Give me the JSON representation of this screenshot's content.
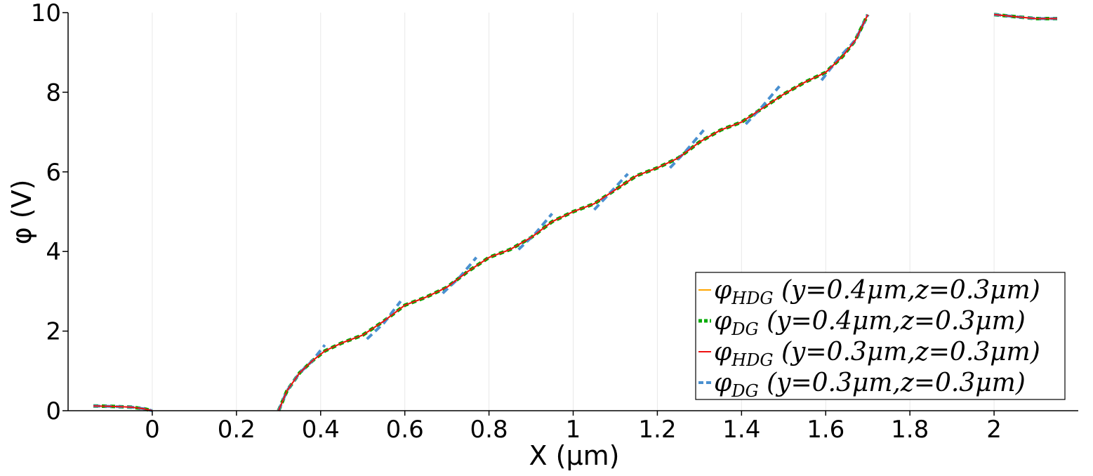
{
  "chart_data": {
    "type": "line",
    "xlabel": "X (μm)",
    "ylabel": "φ (V)",
    "xlim": [
      -0.2,
      2.2
    ],
    "ylim": [
      0,
      10
    ],
    "x_ticks": [
      0,
      0.2,
      0.4,
      0.6,
      0.8,
      1,
      1.2,
      1.4,
      1.6,
      1.8,
      2
    ],
    "y_ticks": [
      0,
      2,
      4,
      6,
      8,
      10
    ],
    "x_grid": true,
    "legend_position": "lower-right",
    "series": [
      {
        "name": "φHDG (y=0.4μm,z=0.3μm)",
        "legend_label": "φ_HDG (y=0.4μm,z=0.3μm)",
        "color": "#ffa500",
        "style": "solid",
        "segments": [
          [
            [
              -0.14,
              0.12
            ],
            [
              -0.1,
              0.11
            ],
            [
              -0.05,
              0.09
            ],
            [
              -0.02,
              0.05
            ],
            [
              0,
              0.0
            ]
          ],
          [
            [
              0.3,
              0.0
            ],
            [
              0.32,
              0.5
            ],
            [
              0.35,
              0.95
            ],
            [
              0.38,
              1.25
            ],
            [
              0.41,
              1.5
            ],
            [
              0.45,
              1.7
            ],
            [
              0.5,
              1.9
            ],
            [
              0.55,
              2.25
            ],
            [
              0.6,
              2.65
            ],
            [
              0.65,
              2.85
            ],
            [
              0.7,
              3.1
            ],
            [
              0.75,
              3.5
            ],
            [
              0.8,
              3.85
            ],
            [
              0.85,
              4.05
            ],
            [
              0.9,
              4.35
            ],
            [
              0.95,
              4.75
            ],
            [
              1.0,
              5.0
            ],
            [
              1.05,
              5.2
            ],
            [
              1.1,
              5.55
            ],
            [
              1.15,
              5.9
            ],
            [
              1.2,
              6.1
            ],
            [
              1.25,
              6.35
            ],
            [
              1.3,
              6.75
            ],
            [
              1.35,
              7.05
            ],
            [
              1.4,
              7.25
            ],
            [
              1.45,
              7.6
            ],
            [
              1.5,
              7.95
            ],
            [
              1.55,
              8.25
            ],
            [
              1.6,
              8.5
            ],
            [
              1.64,
              8.9
            ],
            [
              1.67,
              9.3
            ],
            [
              1.7,
              9.95
            ]
          ],
          [
            [
              2.0,
              9.95
            ],
            [
              2.05,
              9.9
            ],
            [
              2.1,
              9.85
            ],
            [
              2.15,
              9.85
            ]
          ]
        ]
      },
      {
        "name": "φDG (y=0.4μm,z=0.3μm)",
        "legend_label": "φ_DG (y=0.4μm,z=0.3μm)",
        "color": "#00aa00",
        "style": "dotted",
        "segments": [
          [
            [
              -0.14,
              0.12
            ],
            [
              -0.1,
              0.11
            ],
            [
              -0.05,
              0.09
            ],
            [
              -0.02,
              0.05
            ],
            [
              0,
              0.0
            ]
          ],
          [
            [
              0.3,
              0.0
            ],
            [
              0.32,
              0.5
            ],
            [
              0.35,
              0.95
            ],
            [
              0.38,
              1.25
            ],
            [
              0.41,
              1.5
            ],
            [
              0.45,
              1.7
            ],
            [
              0.5,
              1.9
            ],
            [
              0.55,
              2.25
            ],
            [
              0.6,
              2.65
            ],
            [
              0.65,
              2.85
            ],
            [
              0.7,
              3.1
            ],
            [
              0.75,
              3.5
            ],
            [
              0.8,
              3.85
            ],
            [
              0.85,
              4.05
            ],
            [
              0.9,
              4.35
            ],
            [
              0.95,
              4.75
            ],
            [
              1.0,
              5.0
            ],
            [
              1.05,
              5.2
            ],
            [
              1.1,
              5.55
            ],
            [
              1.15,
              5.9
            ],
            [
              1.2,
              6.1
            ],
            [
              1.25,
              6.35
            ],
            [
              1.3,
              6.75
            ],
            [
              1.35,
              7.05
            ],
            [
              1.4,
              7.25
            ],
            [
              1.45,
              7.6
            ],
            [
              1.5,
              7.95
            ],
            [
              1.55,
              8.25
            ],
            [
              1.6,
              8.5
            ],
            [
              1.64,
              8.9
            ],
            [
              1.67,
              9.3
            ],
            [
              1.7,
              9.95
            ]
          ],
          [
            [
              2.0,
              9.95
            ],
            [
              2.05,
              9.9
            ],
            [
              2.1,
              9.85
            ],
            [
              2.15,
              9.85
            ]
          ]
        ]
      },
      {
        "name": "φHDG (y=0.3μm,z=0.3μm)",
        "legend_label": "φ_HDG (y=0.3μm,z=0.3μm)",
        "color": "#ee1111",
        "style": "solid",
        "segments": [
          [
            [
              -0.14,
              0.12
            ],
            [
              -0.1,
              0.11
            ],
            [
              -0.05,
              0.09
            ],
            [
              -0.02,
              0.05
            ],
            [
              0,
              0.0
            ]
          ],
          [
            [
              0.3,
              0.0
            ],
            [
              0.32,
              0.5
            ],
            [
              0.35,
              0.95
            ],
            [
              0.38,
              1.25
            ],
            [
              0.41,
              1.5
            ],
            [
              0.45,
              1.7
            ],
            [
              0.5,
              1.9
            ],
            [
              0.55,
              2.25
            ],
            [
              0.6,
              2.65
            ],
            [
              0.65,
              2.85
            ],
            [
              0.7,
              3.1
            ],
            [
              0.75,
              3.5
            ],
            [
              0.8,
              3.85
            ],
            [
              0.85,
              4.05
            ],
            [
              0.9,
              4.35
            ],
            [
              0.95,
              4.75
            ],
            [
              1.0,
              5.0
            ],
            [
              1.05,
              5.2
            ],
            [
              1.1,
              5.55
            ],
            [
              1.15,
              5.9
            ],
            [
              1.2,
              6.1
            ],
            [
              1.25,
              6.35
            ],
            [
              1.3,
              6.75
            ],
            [
              1.35,
              7.05
            ],
            [
              1.4,
              7.25
            ],
            [
              1.45,
              7.6
            ],
            [
              1.5,
              7.95
            ],
            [
              1.55,
              8.25
            ],
            [
              1.6,
              8.5
            ],
            [
              1.64,
              8.9
            ],
            [
              1.67,
              9.3
            ],
            [
              1.7,
              9.95
            ]
          ],
          [
            [
              2.0,
              9.95
            ],
            [
              2.05,
              9.9
            ],
            [
              2.1,
              9.85
            ],
            [
              2.15,
              9.85
            ]
          ]
        ]
      },
      {
        "name": "φDG (y=0.3μm,z=0.3μm)",
        "legend_label": "φ_DG (y=0.3μm,z=0.3μm)",
        "color": "#4a90d0",
        "style": "dashed",
        "segments": [
          [
            [
              -0.14,
              0.12
            ],
            [
              -0.1,
              0.11
            ],
            [
              -0.05,
              0.09
            ],
            [
              -0.02,
              0.05
            ],
            [
              0,
              0.0
            ]
          ],
          [
            [
              0.3,
              0.0
            ],
            [
              0.32,
              0.5
            ],
            [
              0.35,
              0.95
            ],
            [
              0.38,
              1.25
            ],
            [
              0.41,
              1.65
            ]
          ],
          [
            [
              0.51,
              1.8
            ],
            [
              0.55,
              2.2
            ],
            [
              0.59,
              2.75
            ]
          ],
          [
            [
              0.69,
              2.95
            ],
            [
              0.73,
              3.35
            ],
            [
              0.77,
              3.85
            ]
          ],
          [
            [
              0.87,
              4.05
            ],
            [
              0.91,
              4.45
            ],
            [
              0.95,
              4.95
            ]
          ],
          [
            [
              1.05,
              5.05
            ],
            [
              1.09,
              5.5
            ],
            [
              1.13,
              5.95
            ]
          ],
          [
            [
              1.23,
              6.1
            ],
            [
              1.27,
              6.55
            ],
            [
              1.31,
              7.05
            ]
          ],
          [
            [
              1.41,
              7.2
            ],
            [
              1.45,
              7.65
            ],
            [
              1.49,
              8.15
            ]
          ],
          [
            [
              1.59,
              8.3
            ],
            [
              1.63,
              8.85
            ],
            [
              1.67,
              9.3
            ],
            [
              1.7,
              9.95
            ]
          ],
          [
            [
              2.0,
              9.95
            ],
            [
              2.05,
              9.9
            ],
            [
              2.1,
              9.85
            ],
            [
              2.15,
              9.85
            ]
          ]
        ]
      }
    ]
  }
}
